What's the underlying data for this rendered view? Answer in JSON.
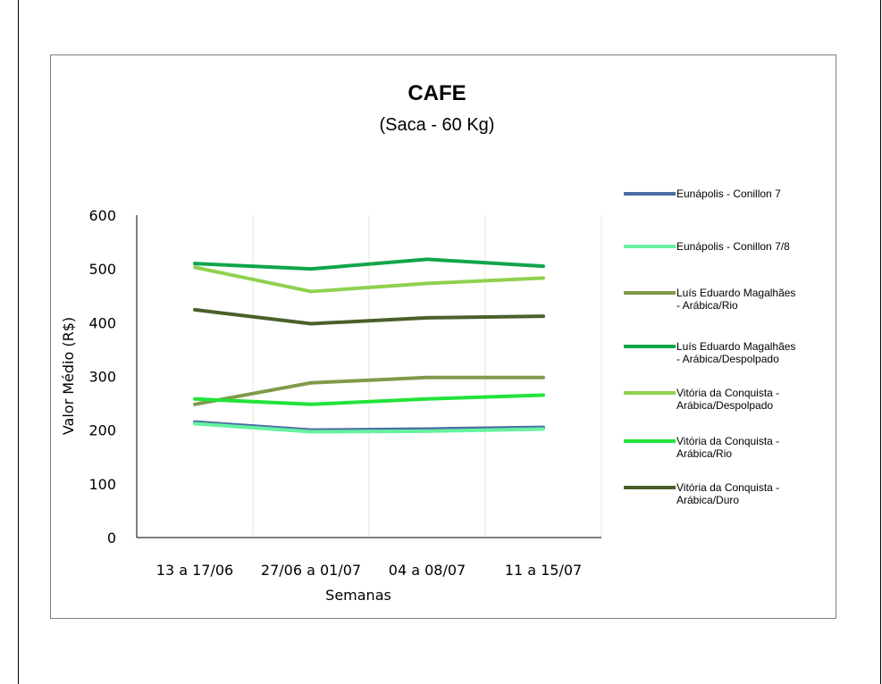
{
  "chart_data": {
    "type": "line",
    "title": "CAFE",
    "subtitle": "(Saca - 60 Kg)",
    "xlabel": "Semanas",
    "ylabel": "Valor  Médio (R$)",
    "categories": [
      "13 a 17/06",
      "27/06 a 01/07",
      "04 a 08/07",
      "11 a 15/07"
    ],
    "ylim": [
      0,
      600
    ],
    "yticks": [
      0,
      100,
      200,
      300,
      400,
      500,
      600
    ],
    "grid": "vertical",
    "legend_position": "right",
    "series": [
      {
        "name": "Eunápolis - Conillon 7",
        "legend_lines": [
          "Eunápolis - Conillon 7"
        ],
        "color": "#4a6fa5",
        "values": [
          215,
          200,
          202,
          205
        ]
      },
      {
        "name": "Eunápolis - Conillon 7/8",
        "legend_lines": [
          "Eunápolis - Conillon 7/8"
        ],
        "color": "#66f2a0",
        "values": [
          212,
          197,
          198,
          202
        ]
      },
      {
        "name": "Luís Eduardo Magalhães - Arábica/Rio",
        "legend_lines": [
          "Luís Eduardo Magalhães",
          "- Arábica/Rio"
        ],
        "color": "#7f9a4a",
        "values": [
          248,
          288,
          298,
          298
        ]
      },
      {
        "name": "Luís Eduardo Magalhães - Arábica/Despolpado",
        "legend_lines": [
          "Luís Eduardo Magalhães",
          "- Arábica/Despolpado"
        ],
        "color": "#10a64a",
        "values": [
          510,
          500,
          518,
          505
        ]
      },
      {
        "name": "Vitória da Conquista - Arábica/Despolpado",
        "legend_lines": [
          "Vitória da Conquista -",
          "Arábica/Despolpado"
        ],
        "color": "#8fd14f",
        "values": [
          503,
          458,
          473,
          483
        ]
      },
      {
        "name": "Vitória da Conquista - Arábica/Rio",
        "legend_lines": [
          "Vitória da Conquista -",
          "Arábica/Rio"
        ],
        "color": "#22e33a",
        "values": [
          258,
          248,
          258,
          265
        ]
      },
      {
        "name": "Vitória da Conquista - Arábica/Duro",
        "legend_lines": [
          "Vitória da Conquista -",
          "Arábica/Duro"
        ],
        "color": "#4b5f2a",
        "values": [
          424,
          398,
          409,
          412
        ]
      }
    ]
  }
}
